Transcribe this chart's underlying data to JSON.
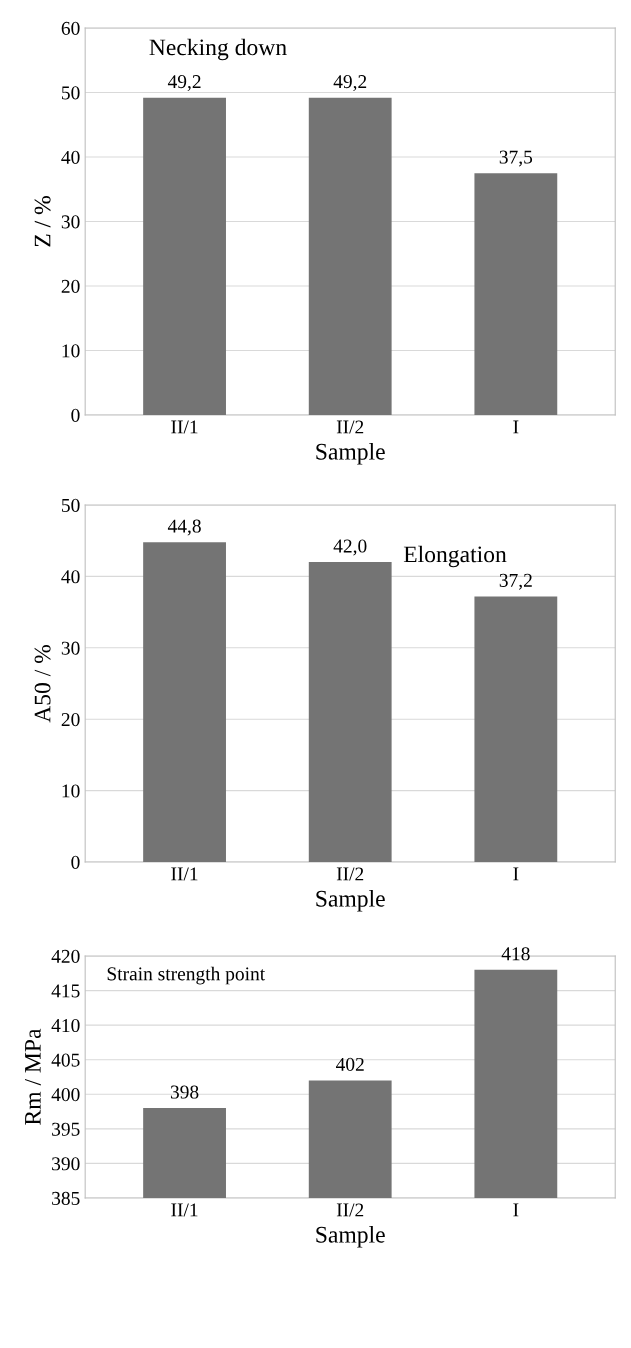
{
  "chart_data": [
    {
      "type": "bar",
      "xlabel": "Sample",
      "ylabel": "Z / %",
      "categories": [
        "II/1",
        "II/2",
        "I"
      ],
      "values": [
        49.2,
        49.2,
        37.5
      ],
      "color": "#747474",
      "value_labels": [
        "49,2",
        "49,2",
        "37,5"
      ],
      "ylim": [
        0,
        60
      ],
      "yticks": [
        0,
        10,
        20,
        30,
        40,
        50,
        60
      ],
      "grid": "y",
      "annotations": [
        "Necking down"
      ]
    },
    {
      "type": "bar",
      "xlabel": "Sample",
      "ylabel": "A50 / %",
      "categories": [
        "II/1",
        "II/2",
        "I"
      ],
      "values": [
        44.8,
        42.0,
        37.2
      ],
      "color": "#747474",
      "value_labels": [
        "44,8",
        "42,0",
        "37,2"
      ],
      "ylim": [
        0,
        50
      ],
      "yticks": [
        0,
        10,
        20,
        30,
        40,
        50
      ],
      "grid": "y",
      "annotations": [
        "Elongation"
      ]
    },
    {
      "type": "bar",
      "xlabel": "Sample",
      "ylabel": "Rm / MPa",
      "categories": [
        "II/1",
        "II/2",
        "I"
      ],
      "values": [
        398,
        402,
        418
      ],
      "color": "#747474",
      "data_labels": true,
      "ylim": [
        385,
        420
      ],
      "yticks": [
        385,
        390,
        395,
        400,
        405,
        410,
        415,
        420
      ],
      "grid": "y",
      "annotations": [
        "Strain strength point"
      ]
    }
  ]
}
